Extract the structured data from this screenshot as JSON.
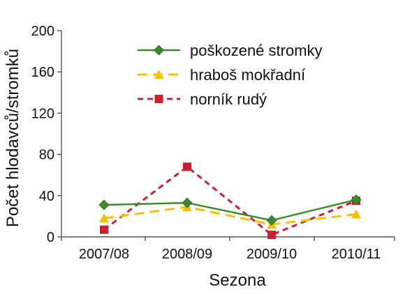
{
  "chart_data": {
    "type": "line",
    "title": "",
    "xlabel": "Sezona",
    "ylabel": "Počet hlodavců/stromků",
    "categories": [
      "2007/08",
      "2008/09",
      "2009/10",
      "2010/11"
    ],
    "ylim": [
      0,
      200
    ],
    "yticks": [
      0,
      40,
      80,
      120,
      160,
      200
    ],
    "grid": false,
    "legend_position": "top-right",
    "series": [
      {
        "name": "poškozené stromky",
        "values": [
          31,
          33,
          16,
          36
        ],
        "color": "#3a8a2c",
        "marker": "diamond",
        "dash": "solid"
      },
      {
        "name": "hraboš mokřadní",
        "values": [
          18,
          29,
          12,
          22
        ],
        "color": "#f6c200",
        "marker": "triangle",
        "dash": "dashed"
      },
      {
        "name": "norník rudý",
        "values": [
          7,
          68,
          2,
          35
        ],
        "color": "#cc1f2f",
        "marker": "square",
        "dash": "dashed"
      }
    ]
  }
}
